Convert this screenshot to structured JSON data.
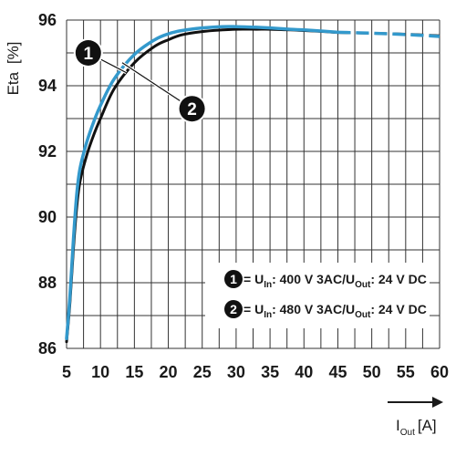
{
  "chart_data": {
    "type": "line",
    "ylabel": {
      "main": "Eta",
      "unit": "[%]"
    },
    "xlabel": {
      "main": "I",
      "sub": "Out",
      "unit": "[A]"
    },
    "xlim": [
      5,
      60
    ],
    "ylim": [
      86,
      96
    ],
    "xticks": [
      5,
      10,
      15,
      20,
      25,
      30,
      35,
      40,
      45,
      50,
      55,
      60
    ],
    "yticks": [
      86,
      88,
      90,
      92,
      94,
      96
    ],
    "grid": true,
    "colors": {
      "series1": "#111111",
      "series2": "#3399cc",
      "grid": "#333333"
    },
    "series": [
      {
        "name": "1",
        "color": "#111111",
        "solid": {
          "x": [
            5,
            5.5,
            6,
            6.5,
            7,
            8,
            9,
            10,
            12,
            15,
            18,
            20,
            22,
            25,
            28,
            30,
            33,
            35,
            38,
            40,
            43,
            45
          ],
          "y": [
            86.2,
            87.4,
            89.0,
            90.3,
            91.1,
            91.9,
            92.5,
            93.0,
            93.9,
            94.7,
            95.2,
            95.4,
            95.55,
            95.65,
            95.7,
            95.72,
            95.72,
            95.72,
            95.7,
            95.68,
            95.65,
            95.62
          ]
        },
        "dashed": {
          "x": [
            45,
            50,
            55,
            60
          ],
          "y": [
            95.62,
            95.6,
            95.57,
            95.52
          ]
        }
      },
      {
        "name": "2",
        "color": "#3399cc",
        "solid": {
          "x": [
            5,
            5.5,
            6,
            6.5,
            7,
            8,
            9,
            10,
            12,
            15,
            18,
            20,
            22,
            25,
            28,
            30,
            33,
            35,
            38,
            40,
            43,
            45
          ],
          "y": [
            86.3,
            87.6,
            89.3,
            90.7,
            91.5,
            92.3,
            92.9,
            93.4,
            94.2,
            94.95,
            95.4,
            95.58,
            95.68,
            95.76,
            95.8,
            95.8,
            95.78,
            95.76,
            95.72,
            95.7,
            95.66,
            95.63
          ]
        },
        "dashed": {
          "x": [
            45,
            50,
            55,
            60
          ],
          "y": [
            95.63,
            95.6,
            95.56,
            95.5
          ]
        }
      }
    ],
    "annotations": [
      {
        "badge": "1",
        "x": 8.2,
        "y": 95.0,
        "points_to": {
          "x": 13.8,
          "y": 94.4
        }
      },
      {
        "badge": "2",
        "x": 23.5,
        "y": 93.3,
        "points_to": {
          "x": 13.2,
          "y": 94.7
        }
      }
    ],
    "legend": {
      "placement": "bottom-right",
      "entries": [
        {
          "badge": "1",
          "prefix": "= U",
          "sub1": "In",
          "mid": ": 400 V 3AC/U",
          "sub2": "Out",
          "suffix": ": 24 V DC"
        },
        {
          "badge": "2",
          "prefix": "= U",
          "sub1": "In",
          "mid": ": 480 V 3AC/U",
          "sub2": "Out",
          "suffix": ": 24 V DC"
        }
      ]
    }
  }
}
